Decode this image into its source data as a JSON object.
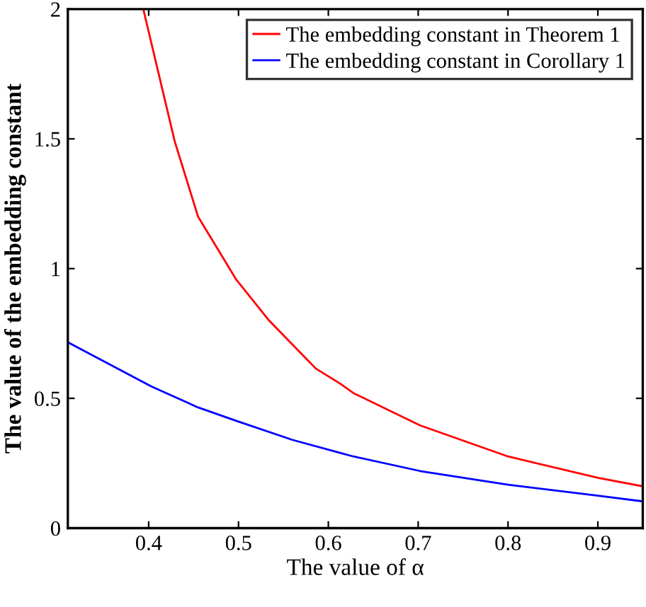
{
  "chart_data": {
    "type": "line",
    "xlabel": "The value of α",
    "ylabel": "The value of the embedding constant",
    "xlim": [
      0.31,
      0.95
    ],
    "ylim": [
      0,
      2
    ],
    "xticks": [
      0.4,
      0.5,
      0.6,
      0.7,
      0.8,
      0.9
    ],
    "yticks": [
      0,
      0.5,
      1,
      1.5,
      2
    ],
    "grid": false,
    "legend": "top right",
    "marker": "none",
    "line_style": "solid",
    "series": [
      {
        "name": "The embedding constant in Theorem 1",
        "color": "#ff0000",
        "x": [
          0.394,
          0.429,
          0.455,
          0.497,
          0.534,
          0.586,
          0.613,
          0.628,
          0.702,
          0.8,
          0.9,
          0.95
        ],
        "values": [
          2,
          1.49,
          1.2,
          0.96,
          0.8,
          0.615,
          0.557,
          0.52,
          0.396,
          0.276,
          0.194,
          0.161
        ]
      },
      {
        "name": "The embedding constant in Corollary 1",
        "color": "#0000ff",
        "x": [
          0.31,
          0.403,
          0.455,
          0.497,
          0.56,
          0.613,
          0.628,
          0.702,
          0.8,
          0.9,
          0.95
        ],
        "values": [
          0.716,
          0.546,
          0.465,
          0.414,
          0.34,
          0.29,
          0.276,
          0.22,
          0.167,
          0.125,
          0.103
        ]
      }
    ]
  }
}
